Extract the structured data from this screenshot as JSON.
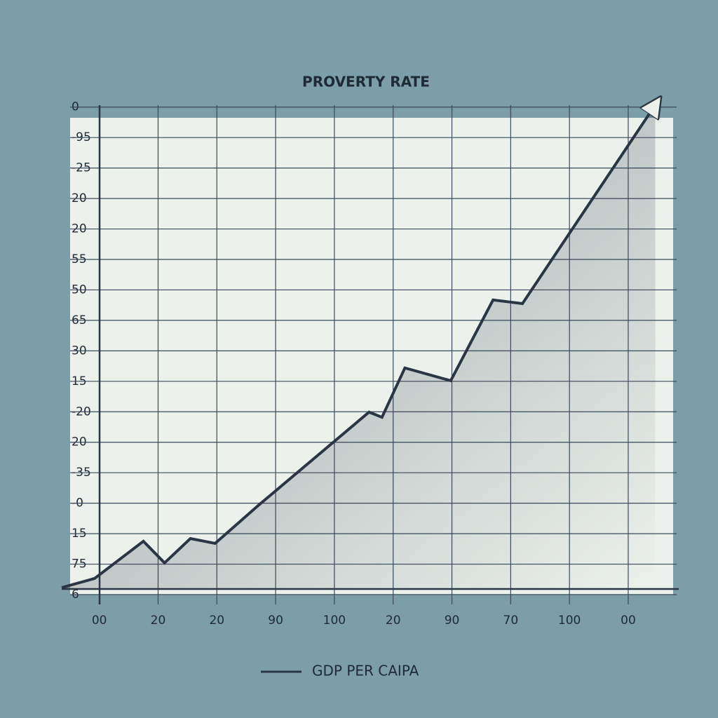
{
  "chart_data": {
    "type": "line",
    "title": "PROVERTY RATE",
    "xlim": [
      -0.7,
      9.8
    ],
    "xticks": [
      {
        "value": 0,
        "label": "00"
      },
      {
        "value": 1,
        "label": "20"
      },
      {
        "value": 2,
        "label": "20"
      },
      {
        "value": 3,
        "label": "90"
      },
      {
        "value": 4,
        "label": "100"
      },
      {
        "value": 5,
        "label": "20"
      },
      {
        "value": 6,
        "label": "90"
      },
      {
        "value": 7,
        "label": "70"
      },
      {
        "value": 8,
        "label": "100"
      },
      {
        "value": 9,
        "label": "00"
      }
    ],
    "ylim": [
      0,
      16.5
    ],
    "yticks": [
      {
        "value": 0,
        "label": "6"
      },
      {
        "value": 1,
        "label": "75"
      },
      {
        "value": 2,
        "label": "15"
      },
      {
        "value": 3,
        "label": "-0"
      },
      {
        "value": 4,
        "label": "-35"
      },
      {
        "value": 5,
        "label": "20"
      },
      {
        "value": 6,
        "label": "-20"
      },
      {
        "value": 7,
        "label": "15"
      },
      {
        "value": 8,
        "label": "30"
      },
      {
        "value": 9,
        "label": "65"
      },
      {
        "value": 10,
        "label": "50"
      },
      {
        "value": 11,
        "label": "55"
      },
      {
        "value": 12,
        "label": "20"
      },
      {
        "value": 13,
        "label": "20"
      },
      {
        "value": 14,
        "label": "-25"
      },
      {
        "value": 15,
        "label": "-95"
      },
      {
        "value": 16,
        "label": "0"
      }
    ],
    "grid": true,
    "series": [
      {
        "name": "GDP PER CAIPA",
        "color": "#2b3645",
        "x": [
          -0.64,
          -0.08,
          0.75,
          1.11,
          1.55,
          1.97,
          2.72,
          4.59,
          4.81,
          5.2,
          5.98,
          6.7,
          7.2,
          9.46
        ],
        "values": [
          0.23,
          0.53,
          1.75,
          1.04,
          1.84,
          1.68,
          2.95,
          5.99,
          5.82,
          7.44,
          7.02,
          9.67,
          9.55,
          16.07
        ]
      }
    ]
  }
}
